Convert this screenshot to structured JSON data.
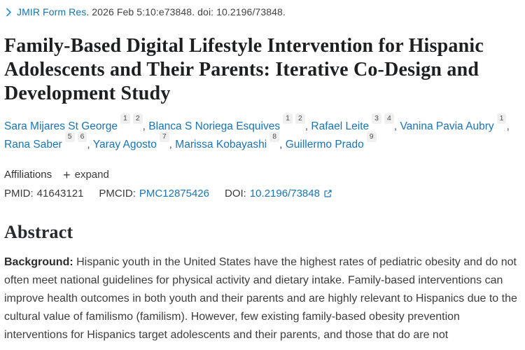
{
  "header": {
    "journal_link": "JMIR Form Res",
    "citation_rest": ". 2026 Feb 5:10:e73848. doi: 10.2196/73848."
  },
  "title": "Family-Based Digital Lifestyle Intervention for Hispanic Adolescents and Their Parents: Iterative Co-Design and Development Study",
  "authors": [
    {
      "name": "Sara Mijares St George",
      "sups": [
        "1",
        "2"
      ]
    },
    {
      "name": "Blanca S Noriega Esquives",
      "sups": [
        "1",
        "2"
      ]
    },
    {
      "name": "Rafael Leite",
      "sups": [
        "3",
        "4"
      ]
    },
    {
      "name": "Vanina Pavia Aubry",
      "sups": [
        "1"
      ]
    },
    {
      "name": "Rana Saber",
      "sups": [
        "5",
        "6"
      ]
    },
    {
      "name": "Yaray Agosto",
      "sups": [
        "7"
      ]
    },
    {
      "name": "Marissa Kobayashi",
      "sups": [
        "8"
      ]
    },
    {
      "name": "Guillermo Prado",
      "sups": [
        "9"
      ]
    }
  ],
  "affiliations": {
    "label": "Affiliations",
    "expand_label": "expand",
    "plus_glyph": "+"
  },
  "identifiers": {
    "pmid_label": "PMID:",
    "pmid_value": "41643121",
    "pmcid_label": "PMCID:",
    "pmcid_value": "PMC12875426",
    "doi_label": "DOI:",
    "doi_value": "10.2196/73848"
  },
  "abstract": {
    "heading": "Abstract",
    "background_label": "Background:",
    "background_text": " Hispanic youth in the United States have the highest rates of pediatric obesity and do not often meet national guidelines for physical activity and dietary intake. Family-based interventions can improve health outcomes in both youth and their parents and are highly relevant to Hispanics due to the cultural value of familismo (familism). However, few existing family-based obesity prevention interventions for Hispanics target adolescents and their parents, and those that do are not"
  },
  "colors": {
    "link_blue": "#1a74b4",
    "chevron_blue": "#2d93d1",
    "text_dark": "#1d1f21",
    "text_gray": "#424242"
  }
}
